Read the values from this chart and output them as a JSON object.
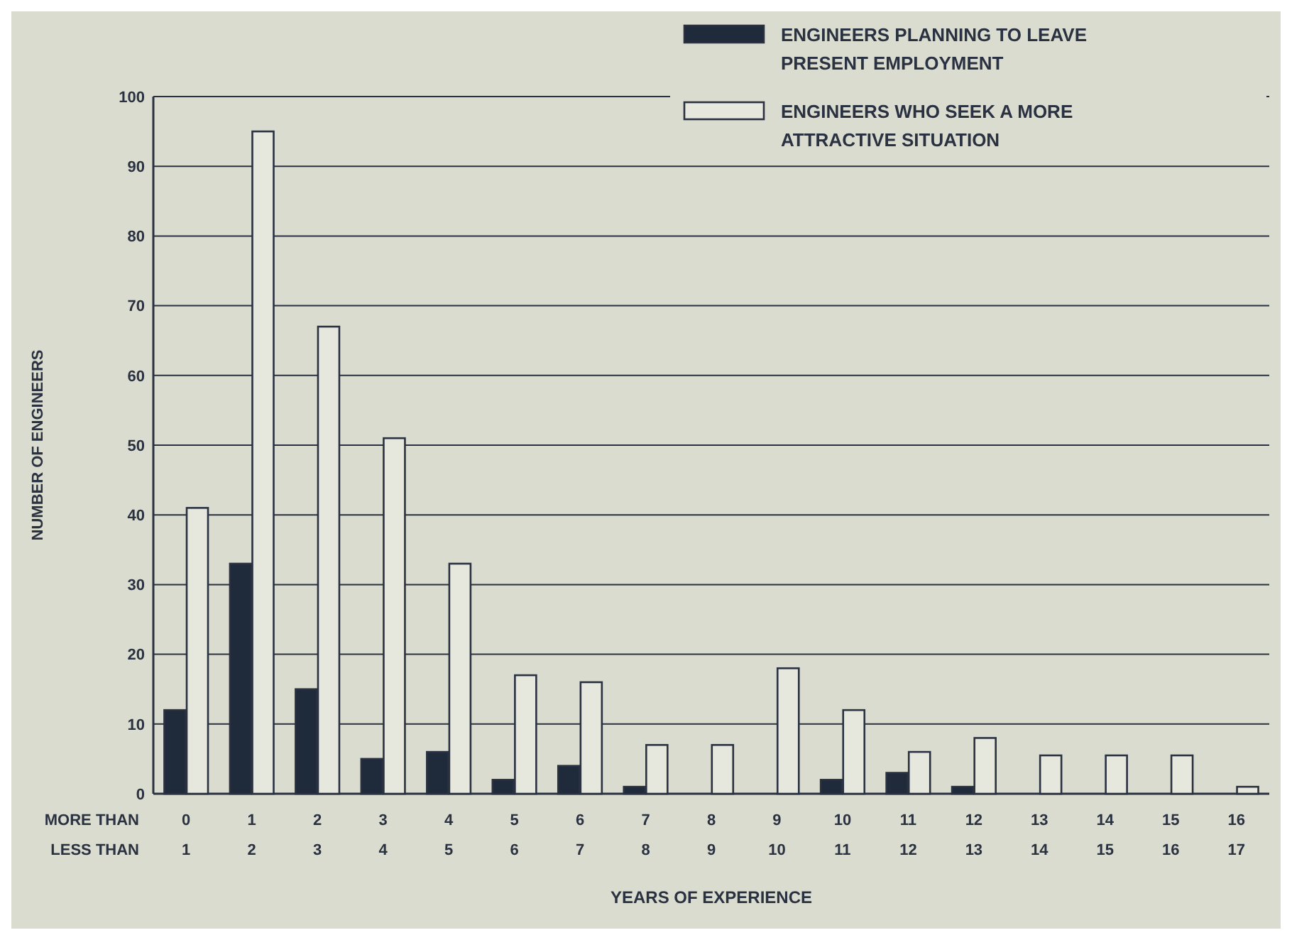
{
  "chart_data": {
    "type": "bar",
    "xlabel": "YEARS OF EXPERIENCE",
    "ylabel": "NUMBER OF ENGINEERS",
    "categories": [
      "0\n1",
      "1\n2",
      "2\n3",
      "3\n4",
      "4\n5",
      "5\n6",
      "6\n7",
      "7\n8",
      "8\n9",
      "9\n10",
      "10\n11",
      "11\n12",
      "12\n13",
      "13\n14",
      "14\n15",
      "15\n16",
      "16\n17"
    ],
    "annotations": [
      "MORE THAN",
      "LESS THAN"
    ],
    "series": [
      {
        "name": "ENGINEERS PLANNING TO LEAVE PRESENT EMPLOYMENT",
        "color": "#1f2a3a",
        "values": [
          12,
          33,
          15,
          5,
          6,
          2,
          4,
          1,
          0,
          0,
          2,
          3,
          1,
          0,
          0,
          0,
          0
        ]
      },
      {
        "name": "ENGINEERS WHO SEEK A MORE ATTRACTIVE SITUATION",
        "color": "#e6e7dd",
        "values": [
          41,
          95,
          67,
          51,
          33,
          17,
          16,
          7,
          7,
          18,
          12,
          6,
          8,
          5.5,
          5.5,
          5.5,
          1
        ]
      }
    ],
    "ylim": [
      0,
      100
    ],
    "yticks": [
      0,
      10,
      20,
      30,
      40,
      50,
      60,
      70,
      80,
      90,
      100
    ],
    "grid": "y",
    "legend": "top right"
  }
}
